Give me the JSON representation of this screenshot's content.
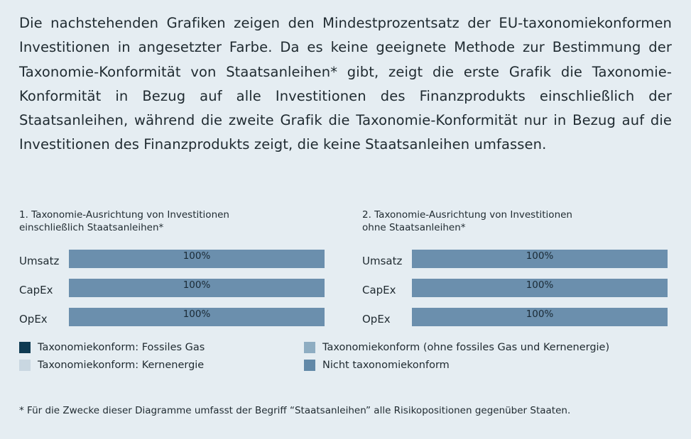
{
  "intro": "Die nachstehenden Grafiken zeigen den Mindestprozentsatz der EU-taxonomiekonformen Investitionen in angesetzter Farbe. Da es keine geeignete Methode zur Bestimmung der Taxonomie-Konformität von Staatsanleihen* gibt, zeigt die erste Grafik die Taxonomie-Konformität in Bezug auf alle Investitionen des Finanzprodukts einschließlich der Staatsanleihen, während die zweite Grafik die Taxonomie-Konformität nur in Bezug auf die Investitionen des Finanzprodukts zeigt, die keine Staatsanleihen umfassen.",
  "chart_data": [
    {
      "type": "bar",
      "title": [
        "1. Taxonomie-Ausrichtung von Investitionen",
        "einschließlich Staatsanleihen*"
      ],
      "categories": [
        "Umsatz",
        "CapEx",
        "OpEx"
      ],
      "values": [
        100,
        100,
        100
      ],
      "value_labels": [
        "100%",
        "100%",
        "100%"
      ],
      "color": "#6b8fad",
      "xlim": [
        0,
        100
      ]
    },
    {
      "type": "bar",
      "title": [
        "2. Taxonomie-Ausrichtung von Investitionen",
        "ohne Staatsanleihen*"
      ],
      "categories": [
        "Umsatz",
        "CapEx",
        "OpEx"
      ],
      "values": [
        100,
        100,
        100
      ],
      "value_labels": [
        "100%",
        "100%",
        "100%"
      ],
      "color": "#6b8fad",
      "xlim": [
        0,
        100
      ]
    }
  ],
  "legend": [
    {
      "label": "Taxonomiekonform: Fossiles Gas",
      "color": "#0e3a52"
    },
    {
      "label": "Taxonomiekonform: Kernenergie",
      "color": "#c9d7e1"
    },
    {
      "label": "Taxonomiekonform (ohne fossiles Gas und Kernenergie)",
      "color": "#8eadc2"
    },
    {
      "label": "Nicht taxonomiekonform",
      "color": "#6289a8"
    }
  ],
  "footnote": "* Für die Zwecke dieser Diagramme umfasst der Begriff “Staatsanleihen” alle Risikopositionen gegenüber Staaten."
}
